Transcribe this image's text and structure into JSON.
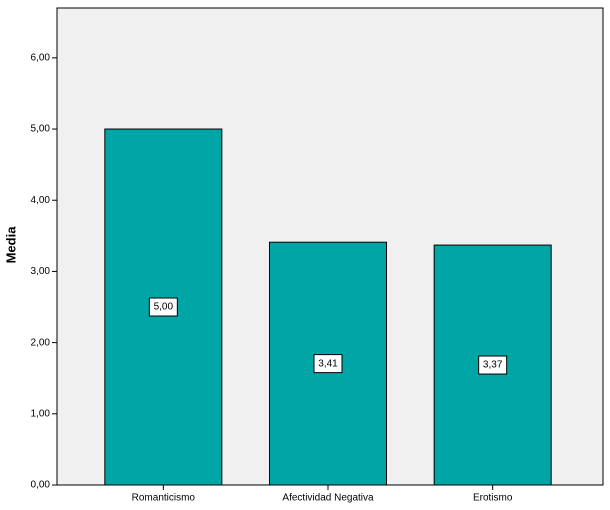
{
  "chart_data": {
    "type": "bar",
    "y_label": "Media",
    "categories": [
      "Romanticismo",
      "Afectividad Negativa",
      "Erotismo"
    ],
    "values": [
      5.0,
      3.41,
      3.37
    ],
    "value_labels": [
      "5,00",
      "3,41",
      "3,37"
    ],
    "color": "#00a6a6",
    "ylim": [
      0,
      6.7
    ],
    "yticks": [
      {
        "value": 0,
        "label": "0,00"
      },
      {
        "value": 1,
        "label": "1,00"
      },
      {
        "value": 2,
        "label": "2,00"
      },
      {
        "value": 3,
        "label": "3,00"
      },
      {
        "value": 4,
        "label": "4,00"
      },
      {
        "value": 5,
        "label": "5,00"
      },
      {
        "value": 6,
        "label": "6,00"
      }
    ],
    "grid": false
  }
}
